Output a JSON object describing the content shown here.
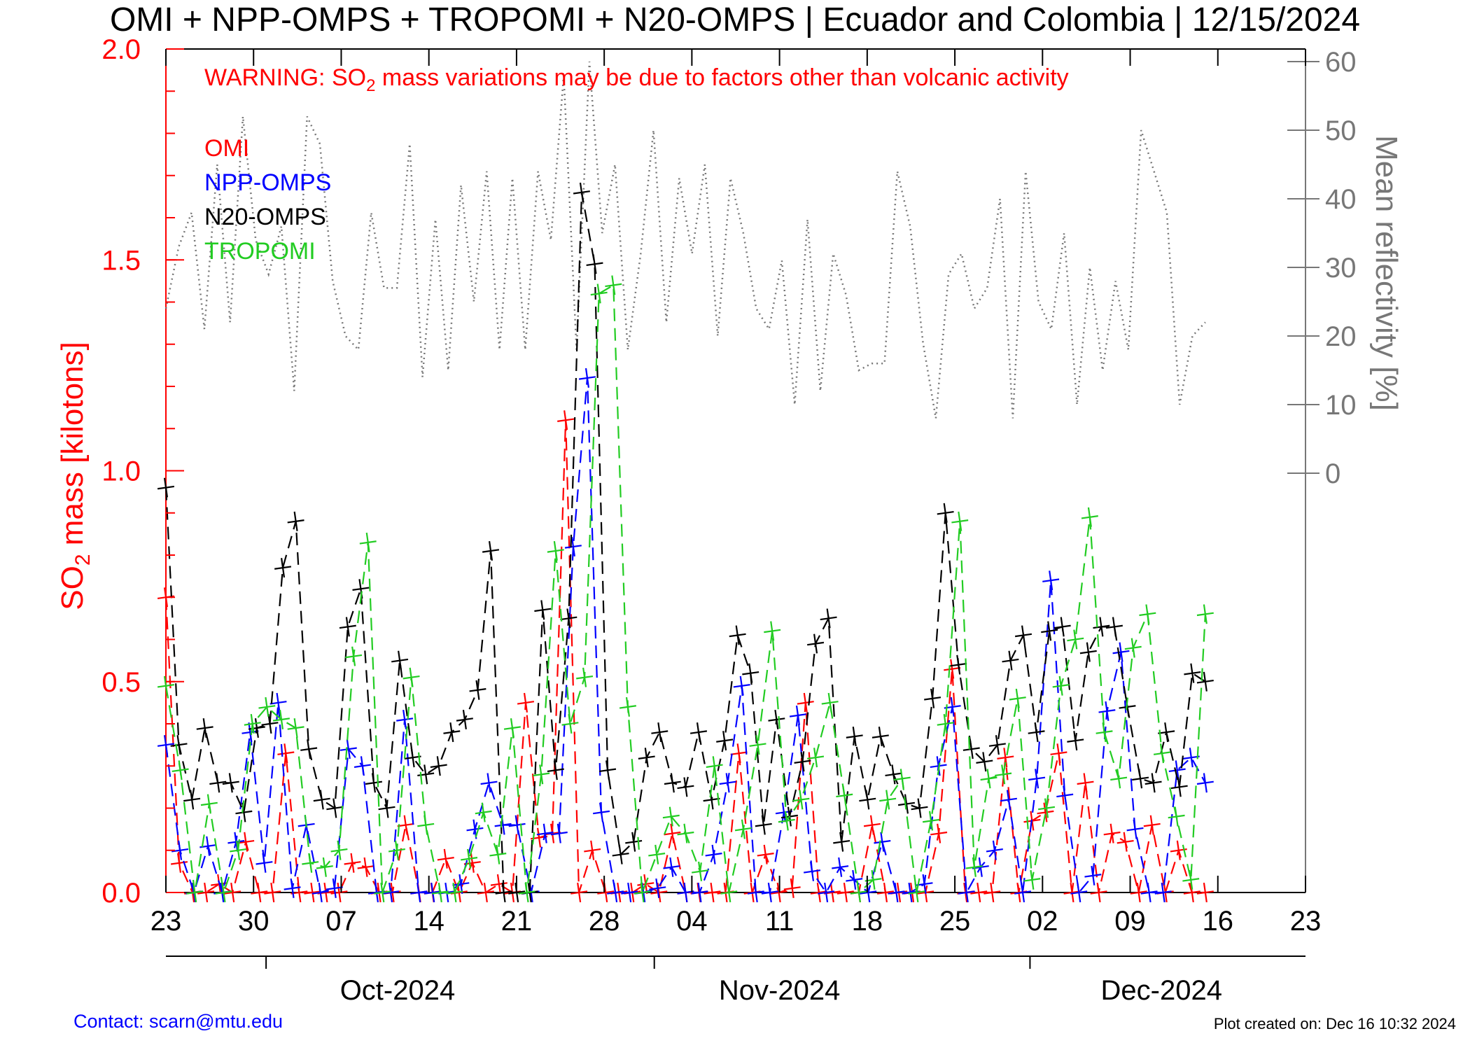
{
  "chart_data": {
    "type": "line",
    "title": "OMI + NPP-OMPS + TROPOMI + N20-OMPS | Ecuador and Colombia | 12/15/2024",
    "warning": {
      "prefix": "WARNING: SO",
      "subscript": "2",
      "suffix": " mass variations may be due to factors other than volcanic activity"
    },
    "ylabel": {
      "prefix": "SO",
      "subscript": "2",
      "suffix": " mass [kilotons]"
    },
    "y2label": "Mean reflectivity [%]",
    "ylim": [
      0,
      2.0
    ],
    "y_ticks": [
      "0.0",
      "0.5",
      "1.0",
      "1.5",
      "2.0"
    ],
    "y_tick_values": [
      0,
      0.5,
      1.0,
      1.5,
      2.0
    ],
    "y2_ticks": [
      "0",
      "10",
      "20",
      "30",
      "40",
      "50",
      "60"
    ],
    "y2_tick_values": [
      0,
      10,
      20,
      30,
      40,
      50,
      60
    ],
    "x_range": [
      "2024-09-23",
      "2024-12-23"
    ],
    "x_ticks": [
      {
        "date": "2024-09-23",
        "label": "23"
      },
      {
        "date": "2024-09-30",
        "label": "30"
      },
      {
        "date": "2024-10-07",
        "label": "07"
      },
      {
        "date": "2024-10-14",
        "label": "14"
      },
      {
        "date": "2024-10-21",
        "label": "21"
      },
      {
        "date": "2024-10-28",
        "label": "28"
      },
      {
        "date": "2024-11-04",
        "label": "04"
      },
      {
        "date": "2024-11-11",
        "label": "11"
      },
      {
        "date": "2024-11-18",
        "label": "18"
      },
      {
        "date": "2024-11-25",
        "label": "25"
      },
      {
        "date": "2024-12-02",
        "label": "02"
      },
      {
        "date": "2024-12-09",
        "label": "09"
      },
      {
        "date": "2024-12-16",
        "label": "16"
      },
      {
        "date": "2024-12-23",
        "label": "23"
      }
    ],
    "months": [
      {
        "date": "2024-10-01",
        "label": "Oct-2024",
        "center": "2024-10-01"
      },
      {
        "date": "2024-11-01",
        "label": "Nov-2024",
        "center": "2024-11-01"
      },
      {
        "date": "2024-12-01",
        "label": "Dec-2024",
        "center": "2024-12-01"
      }
    ],
    "start_date": "2024-09-23",
    "series": [
      {
        "name": "OMI",
        "color": "#ff0000",
        "values": [
          0.7,
          0.07,
          0.0,
          0.0,
          0.02,
          0.0,
          0.12,
          0.0,
          0.0,
          0.33,
          0.0,
          0.0,
          0.0,
          0.0,
          0.07,
          0.06,
          0.0,
          0.0,
          0.16,
          0.0,
          0.0,
          0.08,
          0.0,
          0.07,
          0.0,
          0.02,
          0.0,
          0.45,
          0.13,
          0.14,
          1.12,
          0.0,
          0.1,
          0.0,
          0.0,
          0.0,
          0.02,
          0.0,
          0.14,
          0.0,
          0.0,
          0.0,
          0.0,
          0.33,
          0.0,
          0.09,
          0.0,
          0.01,
          0.45,
          0.0,
          0.0,
          0.0,
          0.0,
          0.16,
          0.0,
          0.0,
          0.0,
          0.0,
          0.14,
          0.53,
          0.0,
          0.0,
          0.0,
          0.32,
          0.0,
          0.17,
          0.19,
          0.33,
          0.0,
          0.26,
          0.0,
          0.14,
          0.12,
          0.0,
          0.16,
          0.0,
          0.1,
          0.0,
          0.0
        ]
      },
      {
        "name": "NPP-OMPS",
        "color": "#0000ff",
        "values": [
          0.35,
          0.1,
          0.0,
          0.11,
          0.0,
          0.12,
          0.38,
          0.07,
          0.45,
          0.01,
          0.16,
          0.0,
          0.01,
          0.34,
          0.3,
          0.0,
          0.0,
          0.41,
          0.0,
          0.0,
          0.0,
          0.02,
          0.15,
          0.26,
          0.16,
          0.16,
          0.0,
          0.14,
          0.14,
          0.82,
          1.22,
          0.19,
          0.0,
          0.0,
          0.0,
          0.01,
          0.06,
          0.0,
          0.0,
          0.09,
          0.26,
          0.49,
          0.0,
          0.0,
          0.19,
          0.42,
          0.05,
          0.0,
          0.06,
          0.03,
          0.0,
          0.12,
          0.0,
          0.0,
          0.02,
          0.3,
          0.44,
          0.0,
          0.06,
          0.1,
          0.22,
          0.0,
          0.27,
          0.74,
          0.23,
          0.0,
          0.04,
          0.43,
          0.57,
          0.15,
          0.0,
          0.0,
          0.29,
          0.32,
          0.26
        ]
      },
      {
        "name": "N20-OMPS",
        "color": "#000000",
        "values": [
          0.96,
          0.35,
          0.22,
          0.39,
          0.26,
          0.26,
          0.19,
          0.39,
          0.4,
          0.77,
          0.88,
          0.34,
          0.22,
          0.2,
          0.63,
          0.72,
          0.26,
          0.2,
          0.55,
          0.32,
          0.28,
          0.3,
          0.38,
          0.41,
          0.48,
          0.81,
          0.0,
          0.0,
          0.0,
          0.67,
          0.29,
          0.65,
          1.66,
          1.49,
          0.29,
          0.09,
          0.12,
          0.32,
          0.38,
          0.26,
          0.25,
          0.38,
          0.22,
          0.36,
          0.61,
          0.52,
          0.16,
          0.41,
          0.18,
          0.31,
          0.59,
          0.65,
          0.12,
          0.37,
          0.22,
          0.37,
          0.28,
          0.21,
          0.2,
          0.46,
          0.9,
          0.54,
          0.34,
          0.31,
          0.35,
          0.55,
          0.61,
          0.38,
          0.62,
          0.63,
          0.36,
          0.57,
          0.63,
          0.63,
          0.44,
          0.27,
          0.26,
          0.38,
          0.25,
          0.52,
          0.5
        ]
      },
      {
        "name": "TROPOMI",
        "color": "#22cc22",
        "values": [
          0.49,
          0.29,
          0.0,
          0.21,
          0.0,
          0.1,
          0.4,
          0.44,
          0.41,
          0.39,
          0.07,
          0.06,
          0.1,
          0.56,
          0.83,
          0.0,
          0.1,
          0.51,
          0.16,
          0.0,
          0.0,
          0.08,
          0.19,
          0.09,
          0.39,
          0.0,
          0.28,
          0.81,
          0.4,
          0.51,
          1.42,
          1.44,
          0.44,
          0.0,
          0.09,
          0.18,
          0.14,
          0.05,
          0.3,
          0.0,
          0.15,
          0.35,
          0.62,
          0.17,
          0.22,
          0.32,
          0.45,
          0.23,
          0.0,
          0.03,
          0.22,
          0.27,
          0.0,
          0.17,
          0.4,
          0.88,
          0.06,
          0.27,
          0.28,
          0.46,
          0.03,
          0.2,
          0.49,
          0.6,
          0.89,
          0.38,
          0.27,
          0.58,
          0.66,
          0.33,
          0.18,
          0.03,
          0.66
        ]
      }
    ],
    "reflectivity": {
      "name": "Mean reflectivity",
      "color": "#777777",
      "values": [
        24,
        33,
        38,
        21,
        45,
        22,
        52,
        34,
        29,
        36,
        12,
        52,
        48,
        28,
        20,
        18,
        38,
        27,
        27,
        48,
        14,
        37,
        15,
        42,
        25,
        44,
        18,
        43,
        18,
        44,
        34,
        58,
        18,
        60,
        35,
        45,
        18,
        32,
        50,
        22,
        43,
        32,
        45,
        20,
        43,
        35,
        24,
        21,
        31,
        10,
        37,
        12,
        32,
        26,
        15,
        16,
        16,
        44,
        36,
        19,
        8,
        29,
        32,
        24,
        27,
        40,
        8,
        44,
        25,
        21,
        35,
        10,
        30,
        15,
        28,
        18,
        50,
        44,
        38,
        10,
        20,
        22
      ]
    }
  },
  "footer": {
    "contact": "Contact: scarn@mtu.edu",
    "created": "Plot created on: Dec 16 10:32 2024"
  }
}
